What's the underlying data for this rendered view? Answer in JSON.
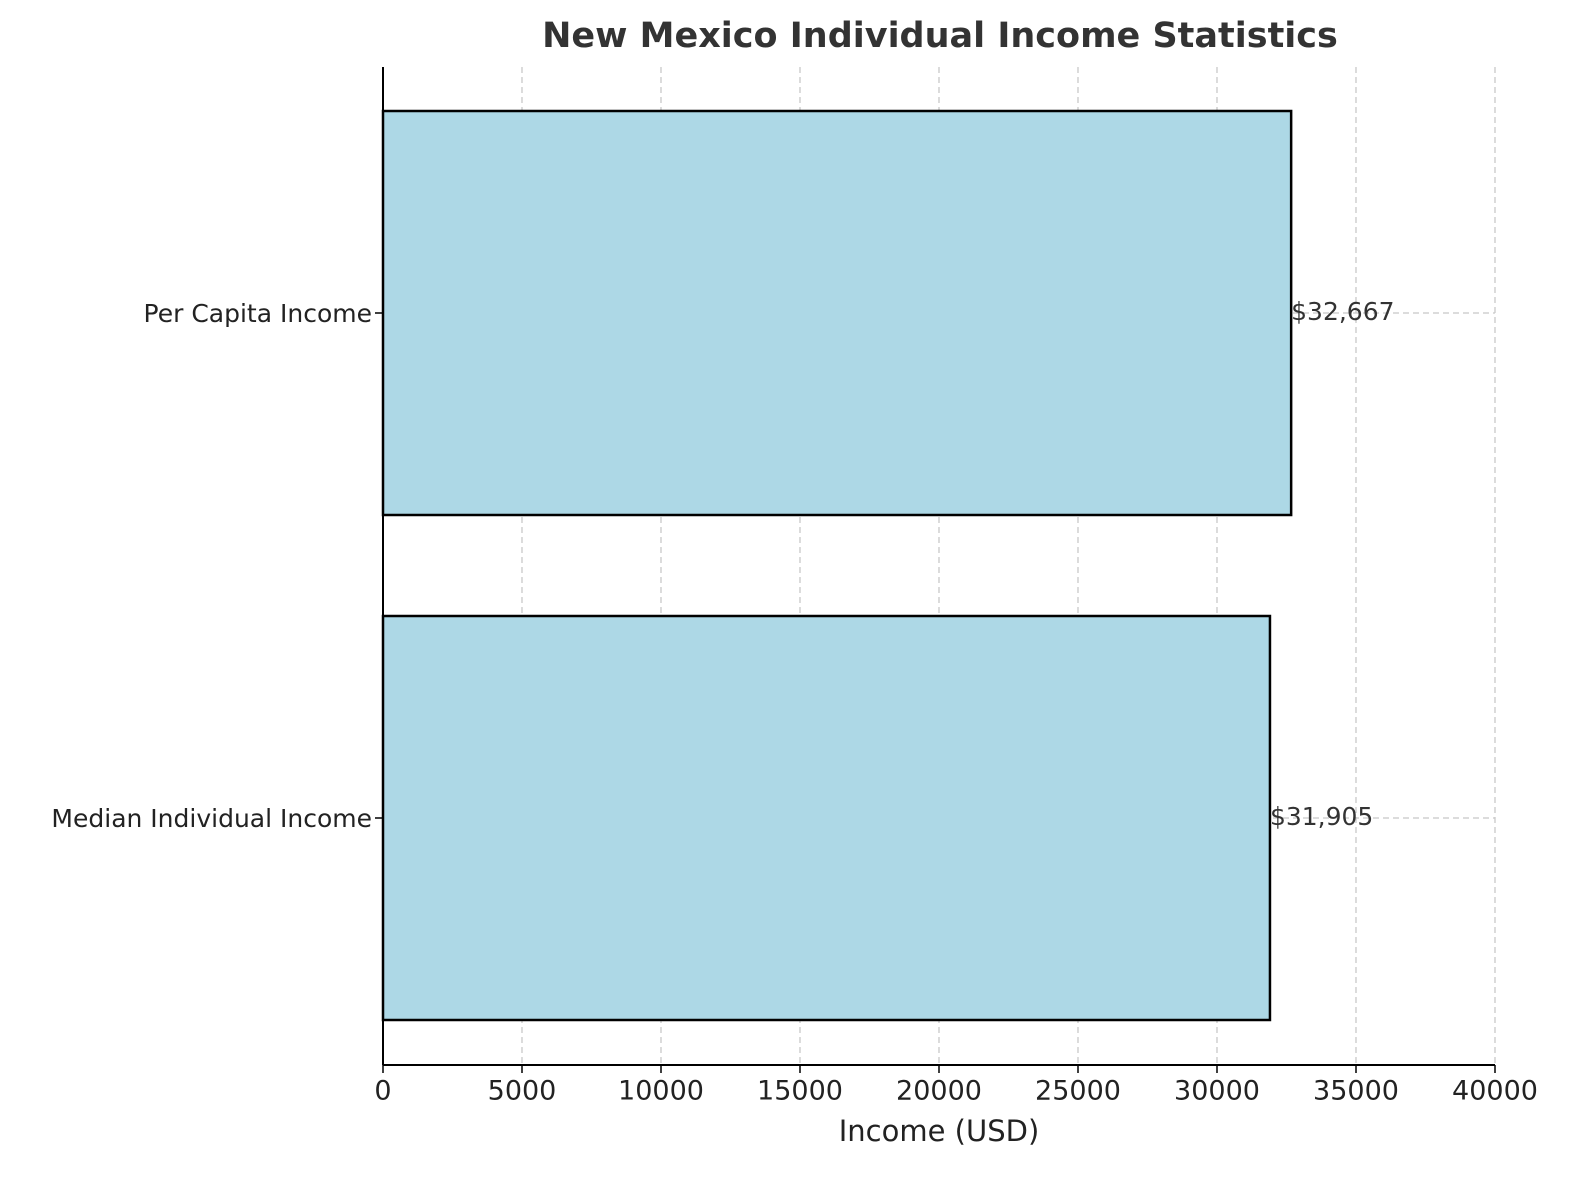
{
  "chart_data": {
    "type": "barh",
    "title": "New Mexico Individual Income Statistics",
    "x_label": "Income (USD)",
    "categories": [
      "Median Individual Income",
      "Per Capita Income"
    ],
    "values": [
      31905,
      32667
    ],
    "value_labels": [
      "$31,905",
      "$32,667"
    ],
    "color": "#add8e6",
    "xlim": [
      0,
      40000
    ],
    "xticks": [
      0,
      5000,
      10000,
      15000,
      20000,
      25000,
      30000,
      35000,
      40000
    ],
    "grid": true
  }
}
